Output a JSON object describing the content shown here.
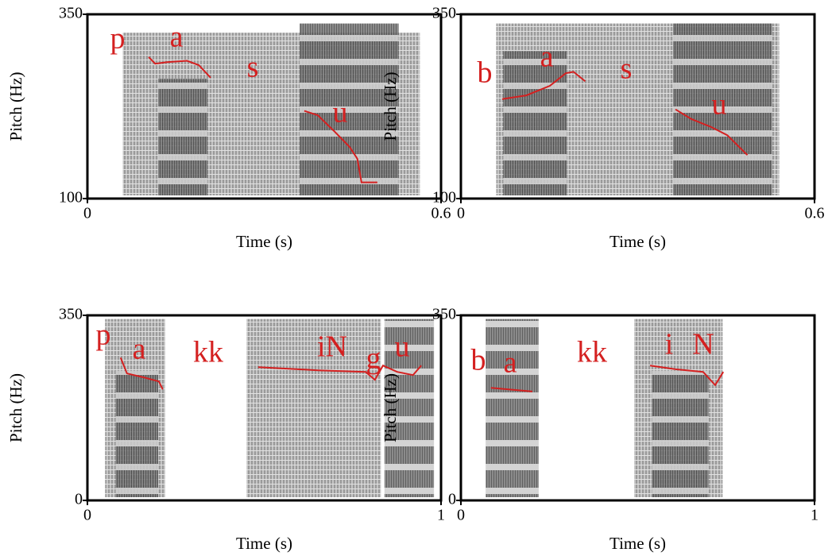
{
  "chart_data": [
    {
      "type": "line",
      "color": "#d42020",
      "x_label": "Time (s)",
      "y_label": "Pitch (Hz)",
      "xlim": [
        0,
        0.6
      ],
      "ylim": [
        100,
        350
      ],
      "xticks": [
        0,
        0.6
      ],
      "yticks": [
        100,
        350
      ],
      "annotations": [
        "p",
        "a",
        "s",
        "u"
      ],
      "x": [
        0.104,
        0.115,
        0.135,
        0.169,
        0.189,
        0.209,
        null,
        0.368,
        0.391,
        0.418,
        0.445,
        0.458,
        0.465,
        0.492
      ],
      "values": [
        292,
        283,
        285,
        287,
        281,
        264,
        null,
        219,
        213,
        192,
        170,
        154,
        122,
        122
      ]
    },
    {
      "type": "line",
      "color": "#d42020",
      "x_label": "Time (s)",
      "y_label": "Pitch (Hz)",
      "xlim": [
        0,
        0.6
      ],
      "ylim": [
        100,
        350
      ],
      "xticks": [
        0,
        0.6
      ],
      "yticks": [
        100,
        350
      ],
      "annotations": [
        "b",
        "a",
        "s",
        "u"
      ],
      "x": [
        0.07,
        0.111,
        0.151,
        0.178,
        0.191,
        0.211,
        null,
        0.364,
        0.391,
        0.425,
        0.452,
        0.486
      ],
      "values": [
        235,
        240,
        253,
        270,
        272,
        259,
        null,
        221,
        208,
        197,
        186,
        159
      ]
    },
    {
      "type": "line",
      "color": "#d42020",
      "x_label": "Time (s)",
      "y_label": "Pitch (Hz)",
      "xlim": [
        0,
        1
      ],
      "ylim": [
        0,
        350
      ],
      "xticks": [
        0,
        1
      ],
      "yticks": [
        0,
        350
      ],
      "annotations": [
        "p",
        "a",
        "kk",
        "iN",
        "g",
        "u"
      ],
      "x": [
        0.094,
        0.112,
        0.157,
        0.202,
        0.213,
        null,
        0.483,
        0.652,
        0.787,
        0.813,
        0.836,
        0.876,
        0.921,
        0.944
      ],
      "values": [
        270,
        240,
        233,
        225,
        210,
        null,
        252,
        246,
        243,
        228,
        255,
        243,
        237,
        255
      ]
    },
    {
      "type": "line",
      "color": "#d42020",
      "x_label": "Time (s)",
      "y_label": "Pitch (Hz)",
      "xlim": [
        0,
        1
      ],
      "ylim": [
        0,
        350
      ],
      "xticks": [
        0,
        1
      ],
      "yticks": [
        0,
        350
      ],
      "annotations": [
        "b",
        "a",
        "kk",
        "i",
        "N"
      ],
      "x": [
        0.085,
        0.135,
        0.202,
        null,
        0.535,
        0.607,
        0.685,
        0.719,
        0.742
      ],
      "values": [
        213,
        210,
        206,
        null,
        255,
        248,
        243,
        218,
        243
      ]
    }
  ]
}
